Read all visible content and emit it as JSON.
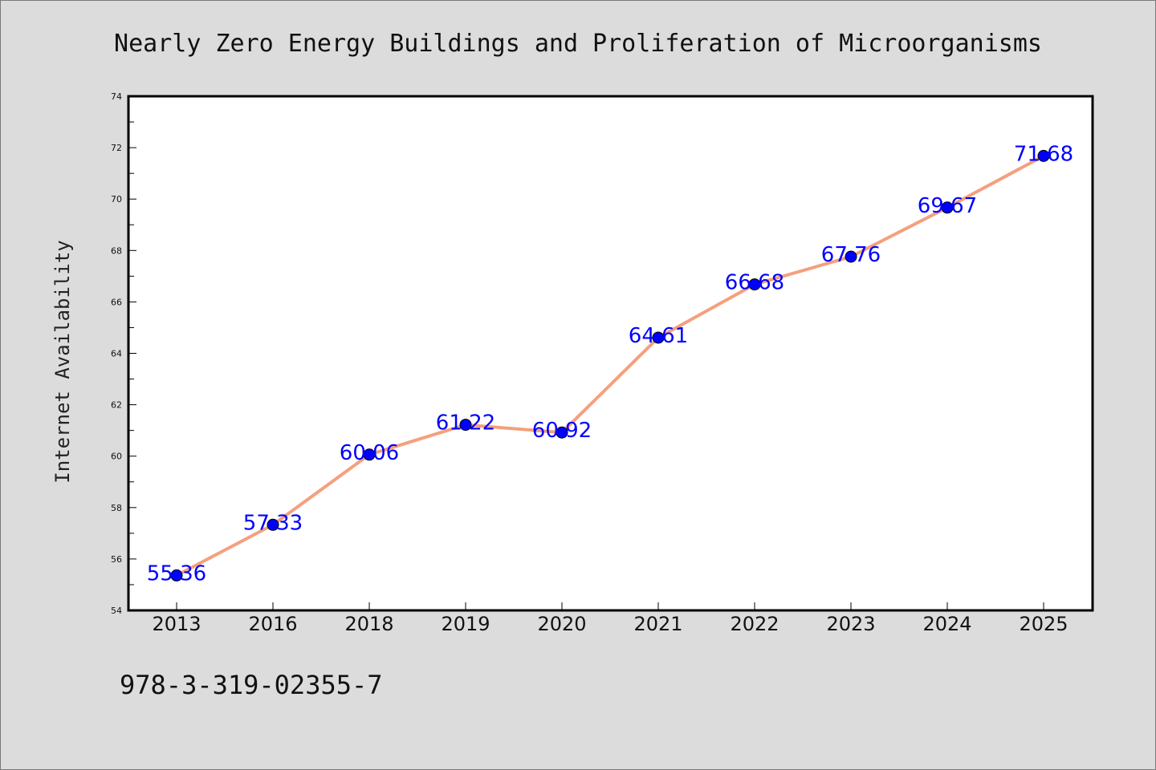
{
  "chart_data": {
    "type": "line",
    "title": "Nearly Zero Energy Buildings and Proliferation of Microorganisms",
    "xlabel": "",
    "ylabel": "Internet Availability",
    "categories": [
      "2013",
      "2016",
      "2018",
      "2019",
      "2020",
      "2021",
      "2022",
      "2023",
      "2024",
      "2025"
    ],
    "series": [
      {
        "values": [
          55.36,
          57.33,
          60.06,
          61.22,
          60.92,
          64.61,
          66.68,
          67.76,
          69.67,
          71.68
        ],
        "data_labels": [
          "55.36",
          "57.33",
          "60.06",
          "61.22",
          "60.92",
          "64.61",
          "66.68",
          "67.76",
          "69.67",
          "71.68"
        ],
        "line_color": "#f4a07e",
        "marker_color": "#0000ff",
        "label_color": "#0000ff"
      }
    ],
    "ylim": [
      54,
      74
    ],
    "yticks": [
      "54",
      "56",
      "58",
      "60",
      "62",
      "64",
      "66",
      "68",
      "70",
      "72",
      "74"
    ],
    "grid": false,
    "legend": "none"
  },
  "footer": {
    "isbn": "978-3-319-02355-7"
  },
  "colors": {
    "background": "#dcdcdc",
    "plot_background": "#ffffff",
    "axis": "#000000"
  }
}
